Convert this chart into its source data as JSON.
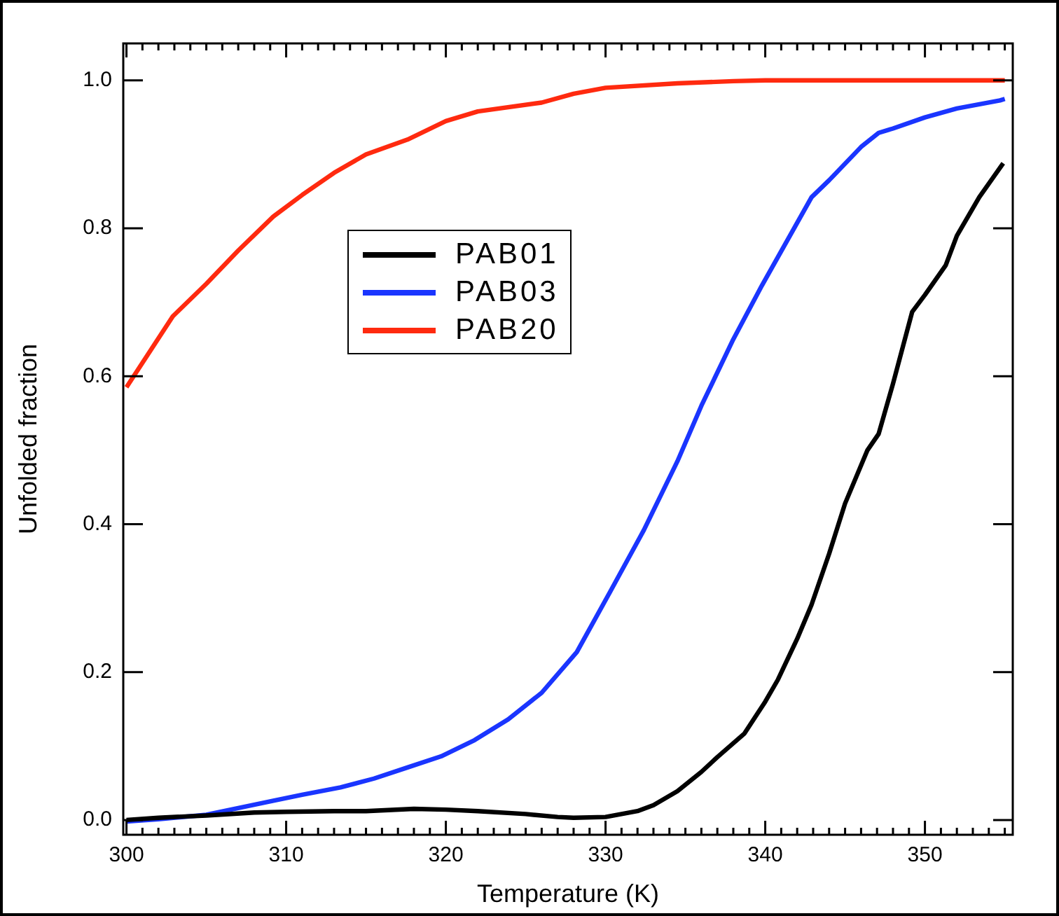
{
  "chart_data": {
    "type": "line",
    "xlabel": "Temperature (K)",
    "ylabel": "Unfolded fraction",
    "xlim": [
      299.8,
      355.5
    ],
    "ylim": [
      -0.02,
      1.05
    ],
    "xticks": [
      300,
      {
        "value": 301,
        "label": null
      },
      {
        "value": 302,
        "label": null
      },
      {
        "value": 303,
        "label": null
      },
      {
        "value": 304,
        "label": null
      },
      {
        "value": 305,
        "label": null
      },
      {
        "value": 306,
        "label": null
      },
      {
        "value": 307,
        "label": null
      },
      {
        "value": 308,
        "label": null
      },
      {
        "value": 309,
        "label": null
      },
      310,
      {
        "value": 311,
        "label": null
      },
      {
        "value": 312,
        "label": null
      },
      {
        "value": 313,
        "label": null
      },
      {
        "value": 314,
        "label": null
      },
      {
        "value": 315,
        "label": null
      },
      {
        "value": 316,
        "label": null
      },
      {
        "value": 317,
        "label": null
      },
      {
        "value": 318,
        "label": null
      },
      {
        "value": 319,
        "label": null
      },
      320,
      {
        "value": 321,
        "label": null
      },
      {
        "value": 322,
        "label": null
      },
      {
        "value": 323,
        "label": null
      },
      {
        "value": 324,
        "label": null
      },
      {
        "value": 325,
        "label": null
      },
      {
        "value": 326,
        "label": null
      },
      {
        "value": 327,
        "label": null
      },
      {
        "value": 328,
        "label": null
      },
      {
        "value": 329,
        "label": null
      },
      330,
      {
        "value": 331,
        "label": null
      },
      {
        "value": 332,
        "label": null
      },
      {
        "value": 333,
        "label": null
      },
      {
        "value": 334,
        "label": null
      },
      {
        "value": 335,
        "label": null
      },
      {
        "value": 336,
        "label": null
      },
      {
        "value": 337,
        "label": null
      },
      {
        "value": 338,
        "label": null
      },
      {
        "value": 339,
        "label": null
      },
      340,
      {
        "value": 341,
        "label": null
      },
      {
        "value": 342,
        "label": null
      },
      {
        "value": 343,
        "label": null
      },
      {
        "value": 344,
        "label": null
      },
      {
        "value": 345,
        "label": null
      },
      {
        "value": 346,
        "label": null
      },
      {
        "value": 347,
        "label": null
      },
      {
        "value": 348,
        "label": null
      },
      {
        "value": 349,
        "label": null
      },
      350,
      {
        "value": 351,
        "label": null
      },
      {
        "value": 352,
        "label": null
      },
      {
        "value": 353,
        "label": null
      },
      {
        "value": 354,
        "label": null
      },
      {
        "value": 355,
        "label": null
      }
    ],
    "yticks": [
      {
        "value": 0,
        "label": "0.0"
      },
      0.2,
      0.4,
      0.6,
      0.8,
      {
        "value": 1,
        "label": "1.0"
      }
    ],
    "grid": false,
    "legend": "top left",
    "series": [
      {
        "name": "PAB01",
        "color": "#000000",
        "x": [
          300,
          302,
          305,
          308,
          310,
          313,
          315,
          318,
          320,
          322,
          325,
          327,
          328,
          330,
          332,
          333,
          334.5,
          336,
          337,
          338.7,
          340,
          340.8,
          342,
          342.9,
          344,
          345,
          346.4,
          347.1,
          348,
          349.2,
          350,
          351.3,
          352,
          353.4,
          354.9
        ],
        "values": [
          0.0,
          0.003,
          0.006,
          0.01,
          0.011,
          0.012,
          0.012,
          0.015,
          0.014,
          0.012,
          0.008,
          0.004,
          0.003,
          0.004,
          0.012,
          0.02,
          0.039,
          0.065,
          0.085,
          0.117,
          0.16,
          0.19,
          0.245,
          0.291,
          0.36,
          0.428,
          0.5,
          0.522,
          0.59,
          0.687,
          0.71,
          0.75,
          0.79,
          0.842,
          0.888
        ]
      },
      {
        "name": "PAB03",
        "color": "#1a35ff",
        "x": [
          300,
          302,
          305,
          307,
          309.2,
          311,
          313.4,
          315.5,
          317.6,
          319.7,
          321.8,
          323.9,
          326,
          328.2,
          330.3,
          332.4,
          334.5,
          336,
          338,
          339.8,
          342.9,
          344,
          346,
          347.1,
          348,
          350,
          352,
          354.7,
          355
        ],
        "values": [
          -0.002,
          0.001,
          0.007,
          0.016,
          0.026,
          0.034,
          0.044,
          0.056,
          0.071,
          0.086,
          0.108,
          0.136,
          0.172,
          0.227,
          0.309,
          0.392,
          0.485,
          0.56,
          0.65,
          0.723,
          0.842,
          0.865,
          0.91,
          0.929,
          0.935,
          0.95,
          0.962,
          0.973,
          0.975
        ]
      },
      {
        "name": "PAB20",
        "color": "#ff2a0f",
        "x": [
          300,
          302.9,
          305,
          307,
          309.2,
          311,
          313,
          315,
          317.6,
          320,
          322,
          326,
          328,
          330,
          334.5,
          338,
          340,
          345,
          350,
          355
        ],
        "values": [
          0.585,
          0.681,
          0.725,
          0.77,
          0.816,
          0.845,
          0.875,
          0.9,
          0.92,
          0.945,
          0.958,
          0.97,
          0.982,
          0.99,
          0.996,
          0.999,
          1.0,
          1.0,
          1.0,
          1.0
        ]
      }
    ]
  }
}
